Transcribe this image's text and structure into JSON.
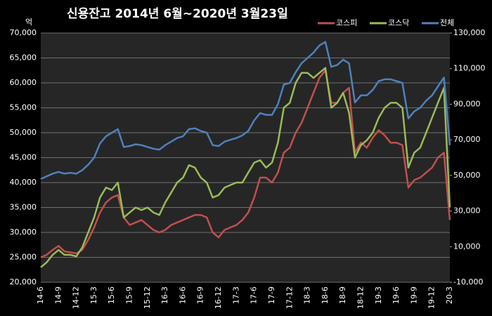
{
  "chart_data": {
    "type": "line",
    "title": "신용잔고 2014년 6월~2020년 3월23일",
    "y_label": "억",
    "categories": [
      "14-6",
      null,
      null,
      "14-9",
      null,
      null,
      "14-12",
      null,
      null,
      "15-3",
      null,
      null,
      "15-6",
      null,
      null,
      "15-9",
      null,
      null,
      "15-12",
      null,
      null,
      "16-3",
      null,
      null,
      "16-6",
      null,
      null,
      "16-9",
      null,
      null,
      "16-12",
      null,
      null,
      "17-3",
      null,
      null,
      "17-6",
      null,
      null,
      "17-9",
      null,
      null,
      "17-12",
      null,
      null,
      "18-3",
      null,
      null,
      "18-6",
      null,
      null,
      "18-9",
      null,
      null,
      "18-12",
      null,
      null,
      "19-3",
      null,
      null,
      "19-6",
      null,
      null,
      "19-9",
      null,
      null,
      "19-12",
      null,
      null,
      "20-3"
    ],
    "series": [
      {
        "name": "코스피",
        "color": "#c0504d",
        "values": [
          25000,
          25500,
          26500,
          27300,
          26200,
          26000,
          25800,
          26500,
          28500,
          31000,
          34000,
          36000,
          37000,
          37500,
          33000,
          31500,
          32000,
          32500,
          31500,
          30500,
          30000,
          30500,
          31500,
          32000,
          32500,
          33000,
          33500,
          33500,
          33000,
          30000,
          29000,
          30500,
          31000,
          31500,
          32500,
          34000,
          37000,
          41000,
          41000,
          40000,
          42000,
          46000,
          47000,
          50000,
          52000,
          55000,
          58000,
          61000,
          62500,
          56000,
          56000,
          58000,
          59000,
          46000,
          48000,
          47000,
          49000,
          50500,
          49500,
          48000,
          48000,
          47500,
          39000,
          40500,
          41000,
          42000,
          43000,
          45000,
          46000,
          32500
        ]
      },
      {
        "name": "코스닥",
        "color": "#9bbb59",
        "values": [
          23000,
          24000,
          25500,
          26500,
          25500,
          25500,
          25200,
          27000,
          30000,
          33000,
          37000,
          39000,
          38500,
          40000,
          33000,
          34000,
          35000,
          34500,
          35000,
          34000,
          33500,
          36000,
          38000,
          40000,
          41000,
          43500,
          43000,
          41000,
          40000,
          37000,
          37500,
          39000,
          39500,
          40000,
          40000,
          42000,
          44000,
          44500,
          43000,
          44000,
          48000,
          55000,
          56000,
          60000,
          62000,
          62000,
          61000,
          62000,
          63000,
          55000,
          56000,
          58000,
          54000,
          45000,
          47500,
          48500,
          50000,
          53000,
          55000,
          56000,
          56000,
          55000,
          43000,
          46000,
          47000,
          50000,
          53000,
          56000,
          59000,
          35000
        ]
      },
      {
        "name": "전체",
        "color": "#4f81bd",
        "axis": "y2",
        "values": [
          48000,
          49500,
          51000,
          52000,
          51000,
          51500,
          51000,
          53000,
          56000,
          60000,
          68000,
          72000,
          74000,
          76000,
          66000,
          66500,
          67500,
          67000,
          66000,
          65000,
          64500,
          67000,
          69000,
          71000,
          72000,
          76000,
          76500,
          75000,
          74000,
          67000,
          66500,
          69000,
          70000,
          71000,
          72500,
          75000,
          81000,
          85000,
          84000,
          84000,
          90000,
          101000,
          102000,
          108000,
          113000,
          116000,
          119000,
          123000,
          125000,
          111000,
          112000,
          115000,
          113000,
          91000,
          95000,
          95000,
          98000,
          103000,
          104000,
          104000,
          103000,
          102000,
          82000,
          86000,
          88000,
          92000,
          95000,
          100000,
          105000,
          67000
        ]
      }
    ],
    "ylim": [
      20000,
      70000
    ],
    "yticks": [
      {
        "value": 20000,
        "label": "20,000"
      },
      {
        "value": 25000,
        "label": "25,000"
      },
      {
        "value": 30000,
        "label": "30,000"
      },
      {
        "value": 35000,
        "label": "35,000"
      },
      {
        "value": 40000,
        "label": "40,000"
      },
      {
        "value": 45000,
        "label": "45,000"
      },
      {
        "value": 50000,
        "label": "50,000"
      },
      {
        "value": 55000,
        "label": "55,000"
      },
      {
        "value": 60000,
        "label": "60,000"
      },
      {
        "value": 65000,
        "label": "65,000"
      },
      {
        "value": 70000,
        "label": "70,000"
      }
    ],
    "y2lim": [
      -10000,
      130000
    ],
    "y2ticks": [
      {
        "value": -10000,
        "label": "-10,000"
      },
      {
        "value": 10000,
        "label": "10,000"
      },
      {
        "value": 30000,
        "label": "30,000"
      },
      {
        "value": 50000,
        "label": "50,000"
      },
      {
        "value": 70000,
        "label": "70,000"
      },
      {
        "value": 90000,
        "label": "90,000"
      },
      {
        "value": 110000,
        "label": "110,000"
      },
      {
        "value": 130000,
        "label": "130,000"
      }
    ],
    "grid": true
  }
}
